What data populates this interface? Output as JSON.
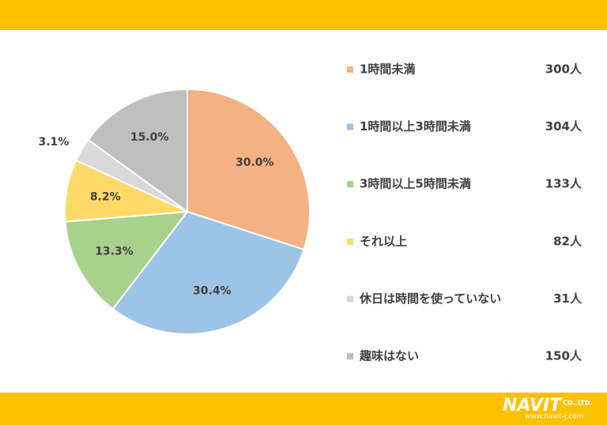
{
  "chart_data": {
    "type": "pie",
    "categories": [
      "1時間未満",
      "1時間以上3時間未満",
      "3時間以上5時間未満",
      "それ以上",
      "休日は時間を使っていない",
      "趣味はない"
    ],
    "values": [
      30.0,
      30.4,
      13.3,
      8.2,
      3.1,
      15.0
    ],
    "value_labels": [
      "30.0%",
      "30.4%",
      "13.3%",
      "8.2%",
      "3.1%",
      "15.0%"
    ],
    "legend_counts": [
      "300人",
      "304人",
      "133人",
      "82人",
      "31人",
      "150人"
    ],
    "colors": [
      "#F4B183",
      "#9DC3E6",
      "#A9D18E",
      "#FFD966",
      "#D9D9D9",
      "#BFBFBF"
    ]
  },
  "footer": {
    "logo": "NAVIT",
    "company": "CO.,LTD.",
    "url": "www.navit-j.com"
  }
}
